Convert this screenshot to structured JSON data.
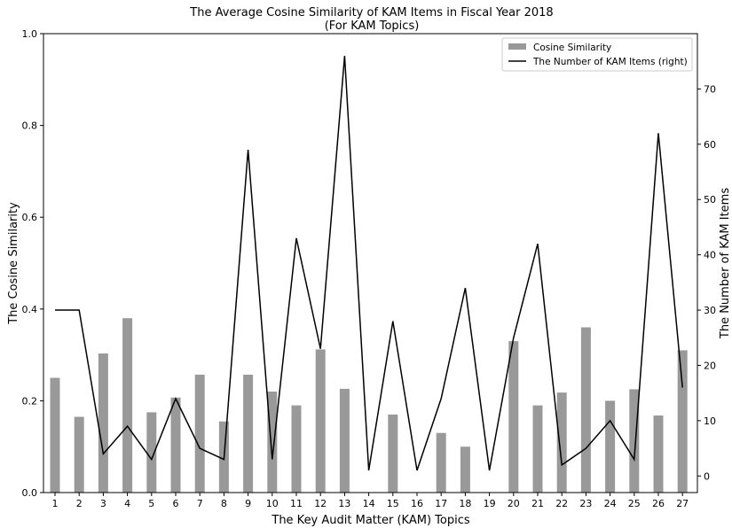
{
  "chart_data": {
    "type": "bar",
    "title": "The Average Cosine Similarity of KAM Items in Fiscal Year 2018",
    "subtitle": "(For KAM Topics)",
    "xlabel": "The Key Audit Matter (KAM) Topics",
    "ylabel": "The Cosine Similarity",
    "y2label": "The Number of KAM Items",
    "categories": [
      "1",
      "2",
      "3",
      "4",
      "5",
      "6",
      "7",
      "8",
      "9",
      "10",
      "11",
      "12",
      "13",
      "14",
      "15",
      "16",
      "17",
      "18",
      "19",
      "20",
      "21",
      "22",
      "23",
      "24",
      "25",
      "26",
      "27"
    ],
    "ylim": [
      0,
      1.0
    ],
    "yticks": [
      "0.0",
      "0.2",
      "0.4",
      "0.6",
      "0.8",
      "1.0"
    ],
    "y2lim": [
      -3,
      80
    ],
    "y2ticks": [
      "0",
      "10",
      "20",
      "30",
      "40",
      "50",
      "60",
      "70"
    ],
    "grid": false,
    "legend_position": "top-right",
    "series": [
      {
        "name": "Cosine Similarity",
        "type": "bar",
        "axis": "left",
        "color": "#999999",
        "values": [
          0.25,
          0.165,
          0.303,
          0.38,
          0.175,
          0.207,
          0.257,
          0.155,
          0.257,
          0.22,
          0.19,
          0.312,
          0.226,
          0.0,
          0.17,
          0.0,
          0.13,
          0.1,
          0.0,
          0.33,
          0.19,
          0.218,
          0.36,
          0.2,
          0.225,
          0.168,
          0.31
        ]
      },
      {
        "name": "The Number of KAM Items (right)",
        "type": "line",
        "axis": "right",
        "color": "#000000",
        "values": [
          30,
          30,
          4,
          9,
          3,
          14,
          5,
          3,
          59,
          3,
          43,
          23,
          76,
          1,
          28,
          1,
          14,
          34,
          1,
          25,
          42,
          2,
          5,
          10,
          3,
          62,
          16
        ]
      }
    ]
  }
}
